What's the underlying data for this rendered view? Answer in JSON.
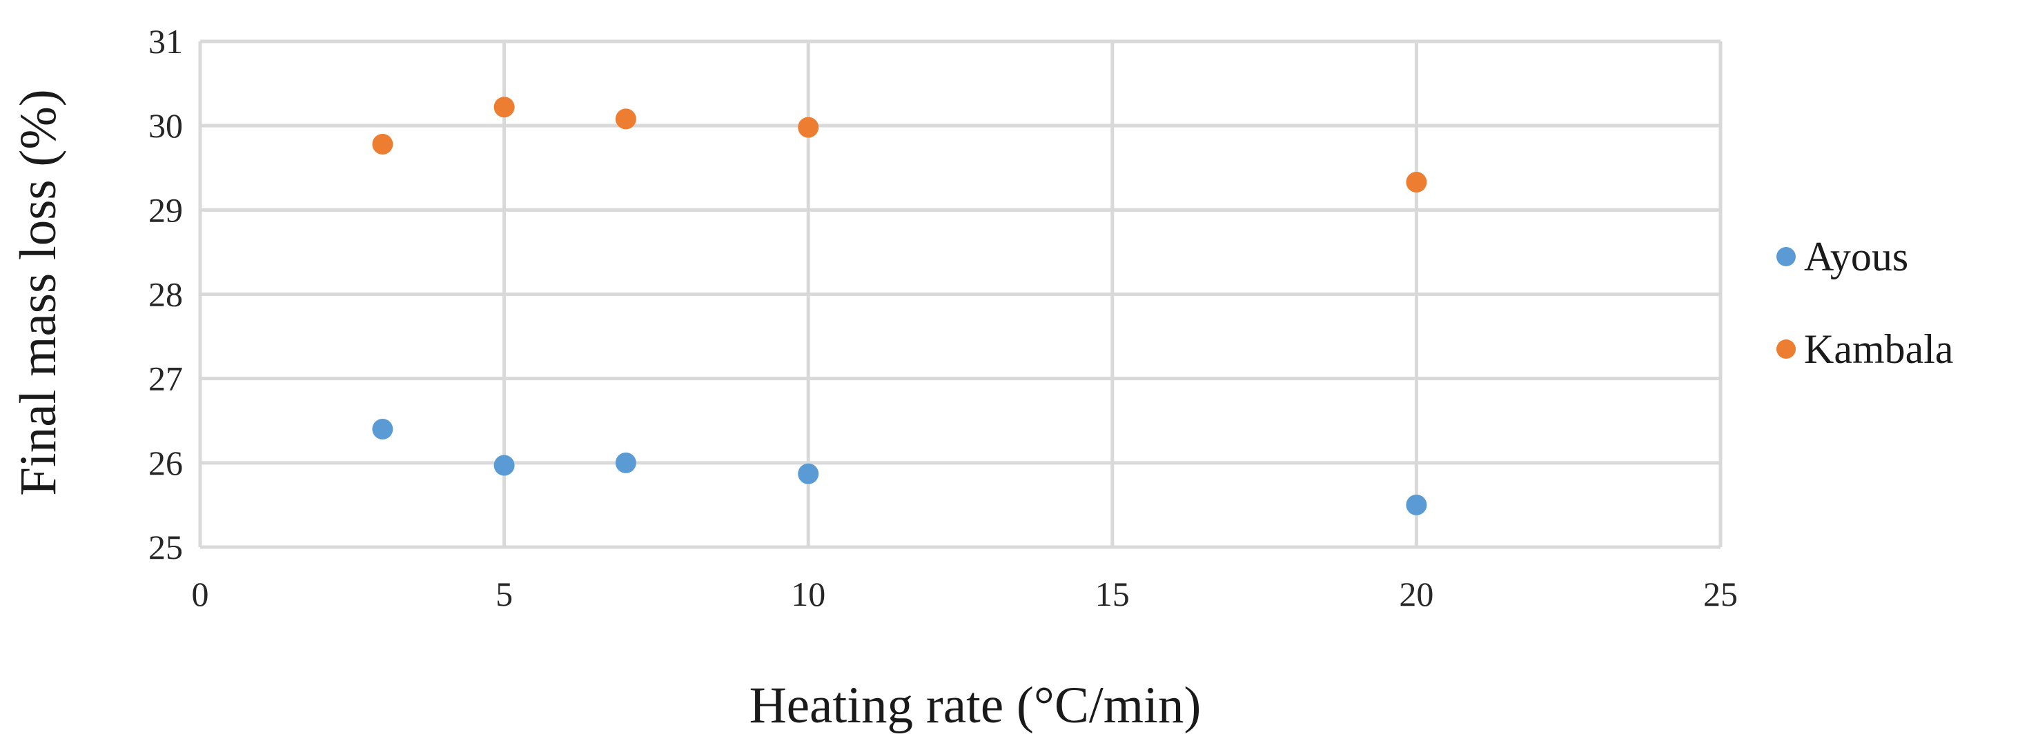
{
  "chart_data": {
    "type": "scatter",
    "title": "",
    "xlabel": "Heating rate (°C/min)",
    "ylabel": "Final mass loss (%)",
    "xlim": [
      0,
      25
    ],
    "ylim": [
      25,
      31
    ],
    "xticks": [
      0,
      5,
      10,
      15,
      20,
      25
    ],
    "yticks": [
      25,
      26,
      27,
      28,
      29,
      30,
      31
    ],
    "grid": true,
    "legend_position": "right",
    "series": [
      {
        "name": "Ayous",
        "color": "#5B9BD5",
        "points": [
          {
            "x": 3,
            "y": 26.4
          },
          {
            "x": 5,
            "y": 25.97
          },
          {
            "x": 7,
            "y": 26.0
          },
          {
            "x": 10,
            "y": 25.87
          },
          {
            "x": 20,
            "y": 25.5
          }
        ]
      },
      {
        "name": "Kambala",
        "color": "#ED7D31",
        "points": [
          {
            "x": 3,
            "y": 29.78
          },
          {
            "x": 5,
            "y": 30.22
          },
          {
            "x": 7,
            "y": 30.08
          },
          {
            "x": 10,
            "y": 29.98
          },
          {
            "x": 20,
            "y": 29.33
          }
        ]
      }
    ]
  }
}
